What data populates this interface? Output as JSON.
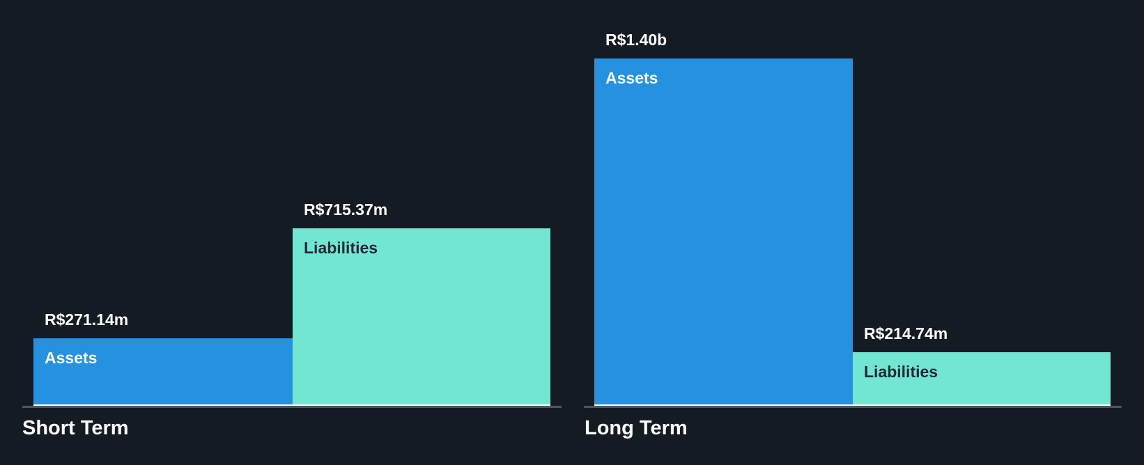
{
  "background_color": "#151B23",
  "chart_data": {
    "type": "bar",
    "currency_symbol": "R$",
    "grid": false,
    "legend_position": "in-bar",
    "max_value_millions": 1400,
    "value_label_color": "#FFFFFF",
    "group_title_color": "#FFFFFF",
    "axis": {
      "baseline_color": "#4E555D",
      "bar_base_highlight_color": "#FFFFFF"
    },
    "groups": [
      {
        "label": "Short Term",
        "bars": [
          {
            "name": "Assets",
            "value_label": "R$271.14m",
            "value_millions": 271.14,
            "color": "#2592E1",
            "text_color": "#FFFFFF"
          },
          {
            "name": "Liabilities",
            "value_label": "R$715.37m",
            "value_millions": 715.37,
            "color": "#72E6D1",
            "text_color": "#1E2A38"
          }
        ]
      },
      {
        "label": "Long Term",
        "bars": [
          {
            "name": "Assets",
            "value_label": "R$1.40b",
            "value_millions": 1400,
            "color": "#2592E1",
            "text_color": "#FFFFFF"
          },
          {
            "name": "Liabilities",
            "value_label": "R$214.74m",
            "value_millions": 214.74,
            "color": "#72E6D1",
            "text_color": "#1E2A38"
          }
        ]
      }
    ]
  }
}
